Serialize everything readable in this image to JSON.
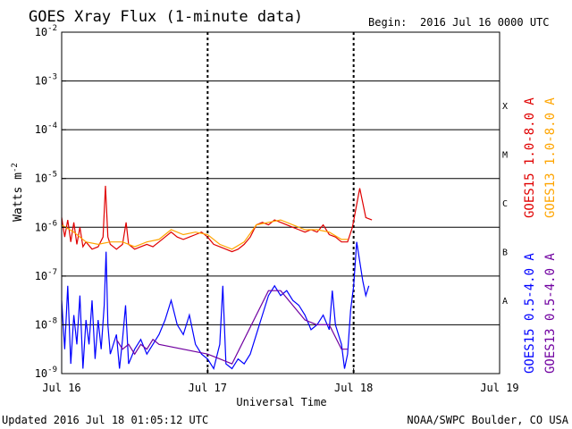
{
  "chart_data": {
    "type": "line",
    "title": "GOES Xray Flux (1-minute data)",
    "begin_label": "Begin:",
    "begin_value": "2016 Jul 16 0000 UTC",
    "ylabel": "Watts m",
    "ylabel_exp": "-2",
    "xlabel": "Universal Time",
    "x_unit": "hours since 2016 Jul 16 0000 UTC",
    "xlim": [
      0,
      72
    ],
    "x_ticks": [
      {
        "x": 0,
        "label": "Jul 16"
      },
      {
        "x": 24,
        "label": "Jul 17"
      },
      {
        "x": 48,
        "label": "Jul 18"
      },
      {
        "x": 72,
        "label": "Jul 19"
      }
    ],
    "day_dividers": [
      24,
      48
    ],
    "yscale": "log",
    "ylim": [
      1e-09,
      0.01
    ],
    "y_ticks": [
      {
        "exp": -2,
        "base": "10",
        "sup": "-2"
      },
      {
        "exp": -3,
        "base": "10",
        "sup": "-3"
      },
      {
        "exp": -4,
        "base": "10",
        "sup": "-4"
      },
      {
        "exp": -5,
        "base": "10",
        "sup": "-5"
      },
      {
        "exp": -6,
        "base": "10",
        "sup": "-6"
      },
      {
        "exp": -7,
        "base": "10",
        "sup": "-7"
      },
      {
        "exp": -8,
        "base": "10",
        "sup": "-8"
      },
      {
        "exp": -9,
        "base": "10",
        "sup": "-9"
      }
    ],
    "grid_levels": [
      -3,
      -4,
      -5,
      -6,
      -7,
      -8
    ],
    "flare_classes": [
      {
        "label": "X",
        "exp": -3.5
      },
      {
        "label": "M",
        "exp": -4.5
      },
      {
        "label": "C",
        "exp": -5.5
      },
      {
        "label": "B",
        "exp": -6.5
      },
      {
        "label": "A",
        "exp": -7.5
      }
    ],
    "series": [
      {
        "name": "GOES15 1.0-8.0 A",
        "color": "#e00000",
        "points": [
          [
            0,
            -5.8
          ],
          [
            0.5,
            -6.2
          ],
          [
            1,
            -5.85
          ],
          [
            1.5,
            -6.3
          ],
          [
            2,
            -5.9
          ],
          [
            2.5,
            -6.35
          ],
          [
            3,
            -6.0
          ],
          [
            3.5,
            -6.4
          ],
          [
            4,
            -6.3
          ],
          [
            5,
            -6.45
          ],
          [
            6,
            -6.4
          ],
          [
            6.8,
            -6.2
          ],
          [
            7.2,
            -5.15
          ],
          [
            7.6,
            -6.2
          ],
          [
            8,
            -6.35
          ],
          [
            9,
            -6.45
          ],
          [
            10,
            -6.35
          ],
          [
            10.6,
            -5.9
          ],
          [
            11,
            -6.35
          ],
          [
            12,
            -6.45
          ],
          [
            13,
            -6.4
          ],
          [
            14,
            -6.35
          ],
          [
            15,
            -6.4
          ],
          [
            16,
            -6.3
          ],
          [
            17,
            -6.2
          ],
          [
            18,
            -6.1
          ],
          [
            19,
            -6.2
          ],
          [
            20,
            -6.25
          ],
          [
            21,
            -6.2
          ],
          [
            22,
            -6.15
          ],
          [
            23,
            -6.1
          ],
          [
            24,
            -6.2
          ],
          [
            25,
            -6.35
          ],
          [
            26,
            -6.4
          ],
          [
            27,
            -6.45
          ],
          [
            28,
            -6.5
          ],
          [
            29,
            -6.45
          ],
          [
            30,
            -6.35
          ],
          [
            31,
            -6.2
          ],
          [
            32,
            -5.95
          ],
          [
            33,
            -5.9
          ],
          [
            34,
            -5.95
          ],
          [
            35,
            -5.85
          ],
          [
            36,
            -5.9
          ],
          [
            37,
            -5.95
          ],
          [
            38,
            -6.0
          ],
          [
            39,
            -6.05
          ],
          [
            40,
            -6.1
          ],
          [
            41,
            -6.05
          ],
          [
            42,
            -6.1
          ],
          [
            43,
            -5.95
          ],
          [
            44,
            -6.15
          ],
          [
            45,
            -6.2
          ],
          [
            46,
            -6.3
          ],
          [
            47,
            -6.3
          ],
          [
            47.8,
            -6.0
          ],
          [
            48.4,
            -5.6
          ],
          [
            49,
            -5.2
          ],
          [
            49.5,
            -5.5
          ],
          [
            50,
            -5.8
          ],
          [
            51,
            -5.85
          ]
        ]
      },
      {
        "name": "GOES13 1.0-8.0 A",
        "color": "#ffa500",
        "points": [
          [
            0,
            -5.95
          ],
          [
            2,
            -6.1
          ],
          [
            4,
            -6.3
          ],
          [
            6,
            -6.35
          ],
          [
            8,
            -6.3
          ],
          [
            10,
            -6.3
          ],
          [
            12,
            -6.4
          ],
          [
            14,
            -6.3
          ],
          [
            16,
            -6.25
          ],
          [
            18,
            -6.05
          ],
          [
            20,
            -6.15
          ],
          [
            22,
            -6.1
          ],
          [
            24,
            -6.15
          ],
          [
            26,
            -6.35
          ],
          [
            28,
            -6.45
          ],
          [
            30,
            -6.3
          ],
          [
            32,
            -5.95
          ],
          [
            34,
            -5.9
          ],
          [
            36,
            -5.85
          ],
          [
            38,
            -5.95
          ],
          [
            40,
            -6.05
          ],
          [
            42,
            -6.05
          ],
          [
            44,
            -6.1
          ],
          [
            46,
            -6.25
          ],
          [
            47,
            -6.25
          ]
        ]
      },
      {
        "name": "GOES15 0.5-4.0 A",
        "color": "#0000ff",
        "points": [
          [
            0,
            -7.5
          ],
          [
            0.5,
            -8.5
          ],
          [
            1,
            -7.2
          ],
          [
            1.5,
            -8.8
          ],
          [
            2,
            -7.8
          ],
          [
            2.5,
            -8.4
          ],
          [
            3,
            -7.4
          ],
          [
            3.5,
            -8.9
          ],
          [
            4,
            -7.9
          ],
          [
            4.5,
            -8.4
          ],
          [
            5,
            -7.5
          ],
          [
            5.5,
            -8.7
          ],
          [
            6,
            -7.9
          ],
          [
            6.5,
            -8.5
          ],
          [
            7,
            -7.6
          ],
          [
            7.3,
            -6.5
          ],
          [
            7.6,
            -8.0
          ],
          [
            8,
            -8.6
          ],
          [
            9,
            -8.2
          ],
          [
            9.5,
            -8.9
          ],
          [
            10,
            -8.3
          ],
          [
            10.5,
            -7.6
          ],
          [
            11,
            -8.8
          ],
          [
            12,
            -8.5
          ],
          [
            13,
            -8.3
          ],
          [
            14,
            -8.6
          ],
          [
            15,
            -8.4
          ],
          [
            16,
            -8.2
          ],
          [
            17,
            -7.9
          ],
          [
            18,
            -7.5
          ],
          [
            19,
            -8.0
          ],
          [
            20,
            -8.2
          ],
          [
            21,
            -7.8
          ],
          [
            22,
            -8.4
          ],
          [
            23,
            -8.6
          ],
          [
            24,
            -8.7
          ],
          [
            25,
            -8.9
          ],
          [
            26,
            -8.4
          ],
          [
            26.5,
            -7.2
          ],
          [
            27,
            -8.8
          ],
          [
            28,
            -8.9
          ],
          [
            29,
            -8.7
          ],
          [
            30,
            -8.8
          ],
          [
            31,
            -8.6
          ],
          [
            32,
            -8.2
          ],
          [
            33,
            -7.8
          ],
          [
            34,
            -7.4
          ],
          [
            35,
            -7.2
          ],
          [
            36,
            -7.4
          ],
          [
            37,
            -7.3
          ],
          [
            38,
            -7.5
          ],
          [
            39,
            -7.6
          ],
          [
            40,
            -7.8
          ],
          [
            41,
            -8.1
          ],
          [
            42,
            -8.0
          ],
          [
            43,
            -7.8
          ],
          [
            44,
            -8.1
          ],
          [
            44.5,
            -7.3
          ],
          [
            45,
            -8.0
          ],
          [
            46,
            -8.4
          ],
          [
            46.5,
            -8.9
          ],
          [
            47,
            -8.6
          ],
          [
            47.5,
            -7.7
          ],
          [
            48,
            -7.2
          ],
          [
            48.5,
            -6.3
          ],
          [
            49,
            -6.7
          ],
          [
            49.5,
            -7.1
          ],
          [
            50,
            -7.4
          ],
          [
            50.5,
            -7.2
          ]
        ]
      },
      {
        "name": "GOES13 0.5-4.0 A",
        "color": "#7000a0",
        "points": [
          [
            9,
            -8.3
          ],
          [
            10,
            -8.5
          ],
          [
            11,
            -8.4
          ],
          [
            12,
            -8.6
          ],
          [
            13,
            -8.4
          ],
          [
            14,
            -8.5
          ],
          [
            15,
            -8.3
          ],
          [
            16,
            -8.4
          ],
          [
            24,
            -8.6
          ],
          [
            26,
            -8.7
          ],
          [
            28,
            -8.8
          ],
          [
            34,
            -7.3
          ],
          [
            36,
            -7.3
          ],
          [
            38,
            -7.6
          ],
          [
            40,
            -7.9
          ],
          [
            42,
            -8.0
          ],
          [
            44,
            -8.0
          ],
          [
            46,
            -8.5
          ],
          [
            47,
            -8.5
          ]
        ]
      }
    ],
    "legend_placement": "right",
    "footer_left": "Updated 2016 Jul 18 01:05:12 UTC",
    "footer_right": "NOAA/SWPC Boulder, CO USA"
  }
}
